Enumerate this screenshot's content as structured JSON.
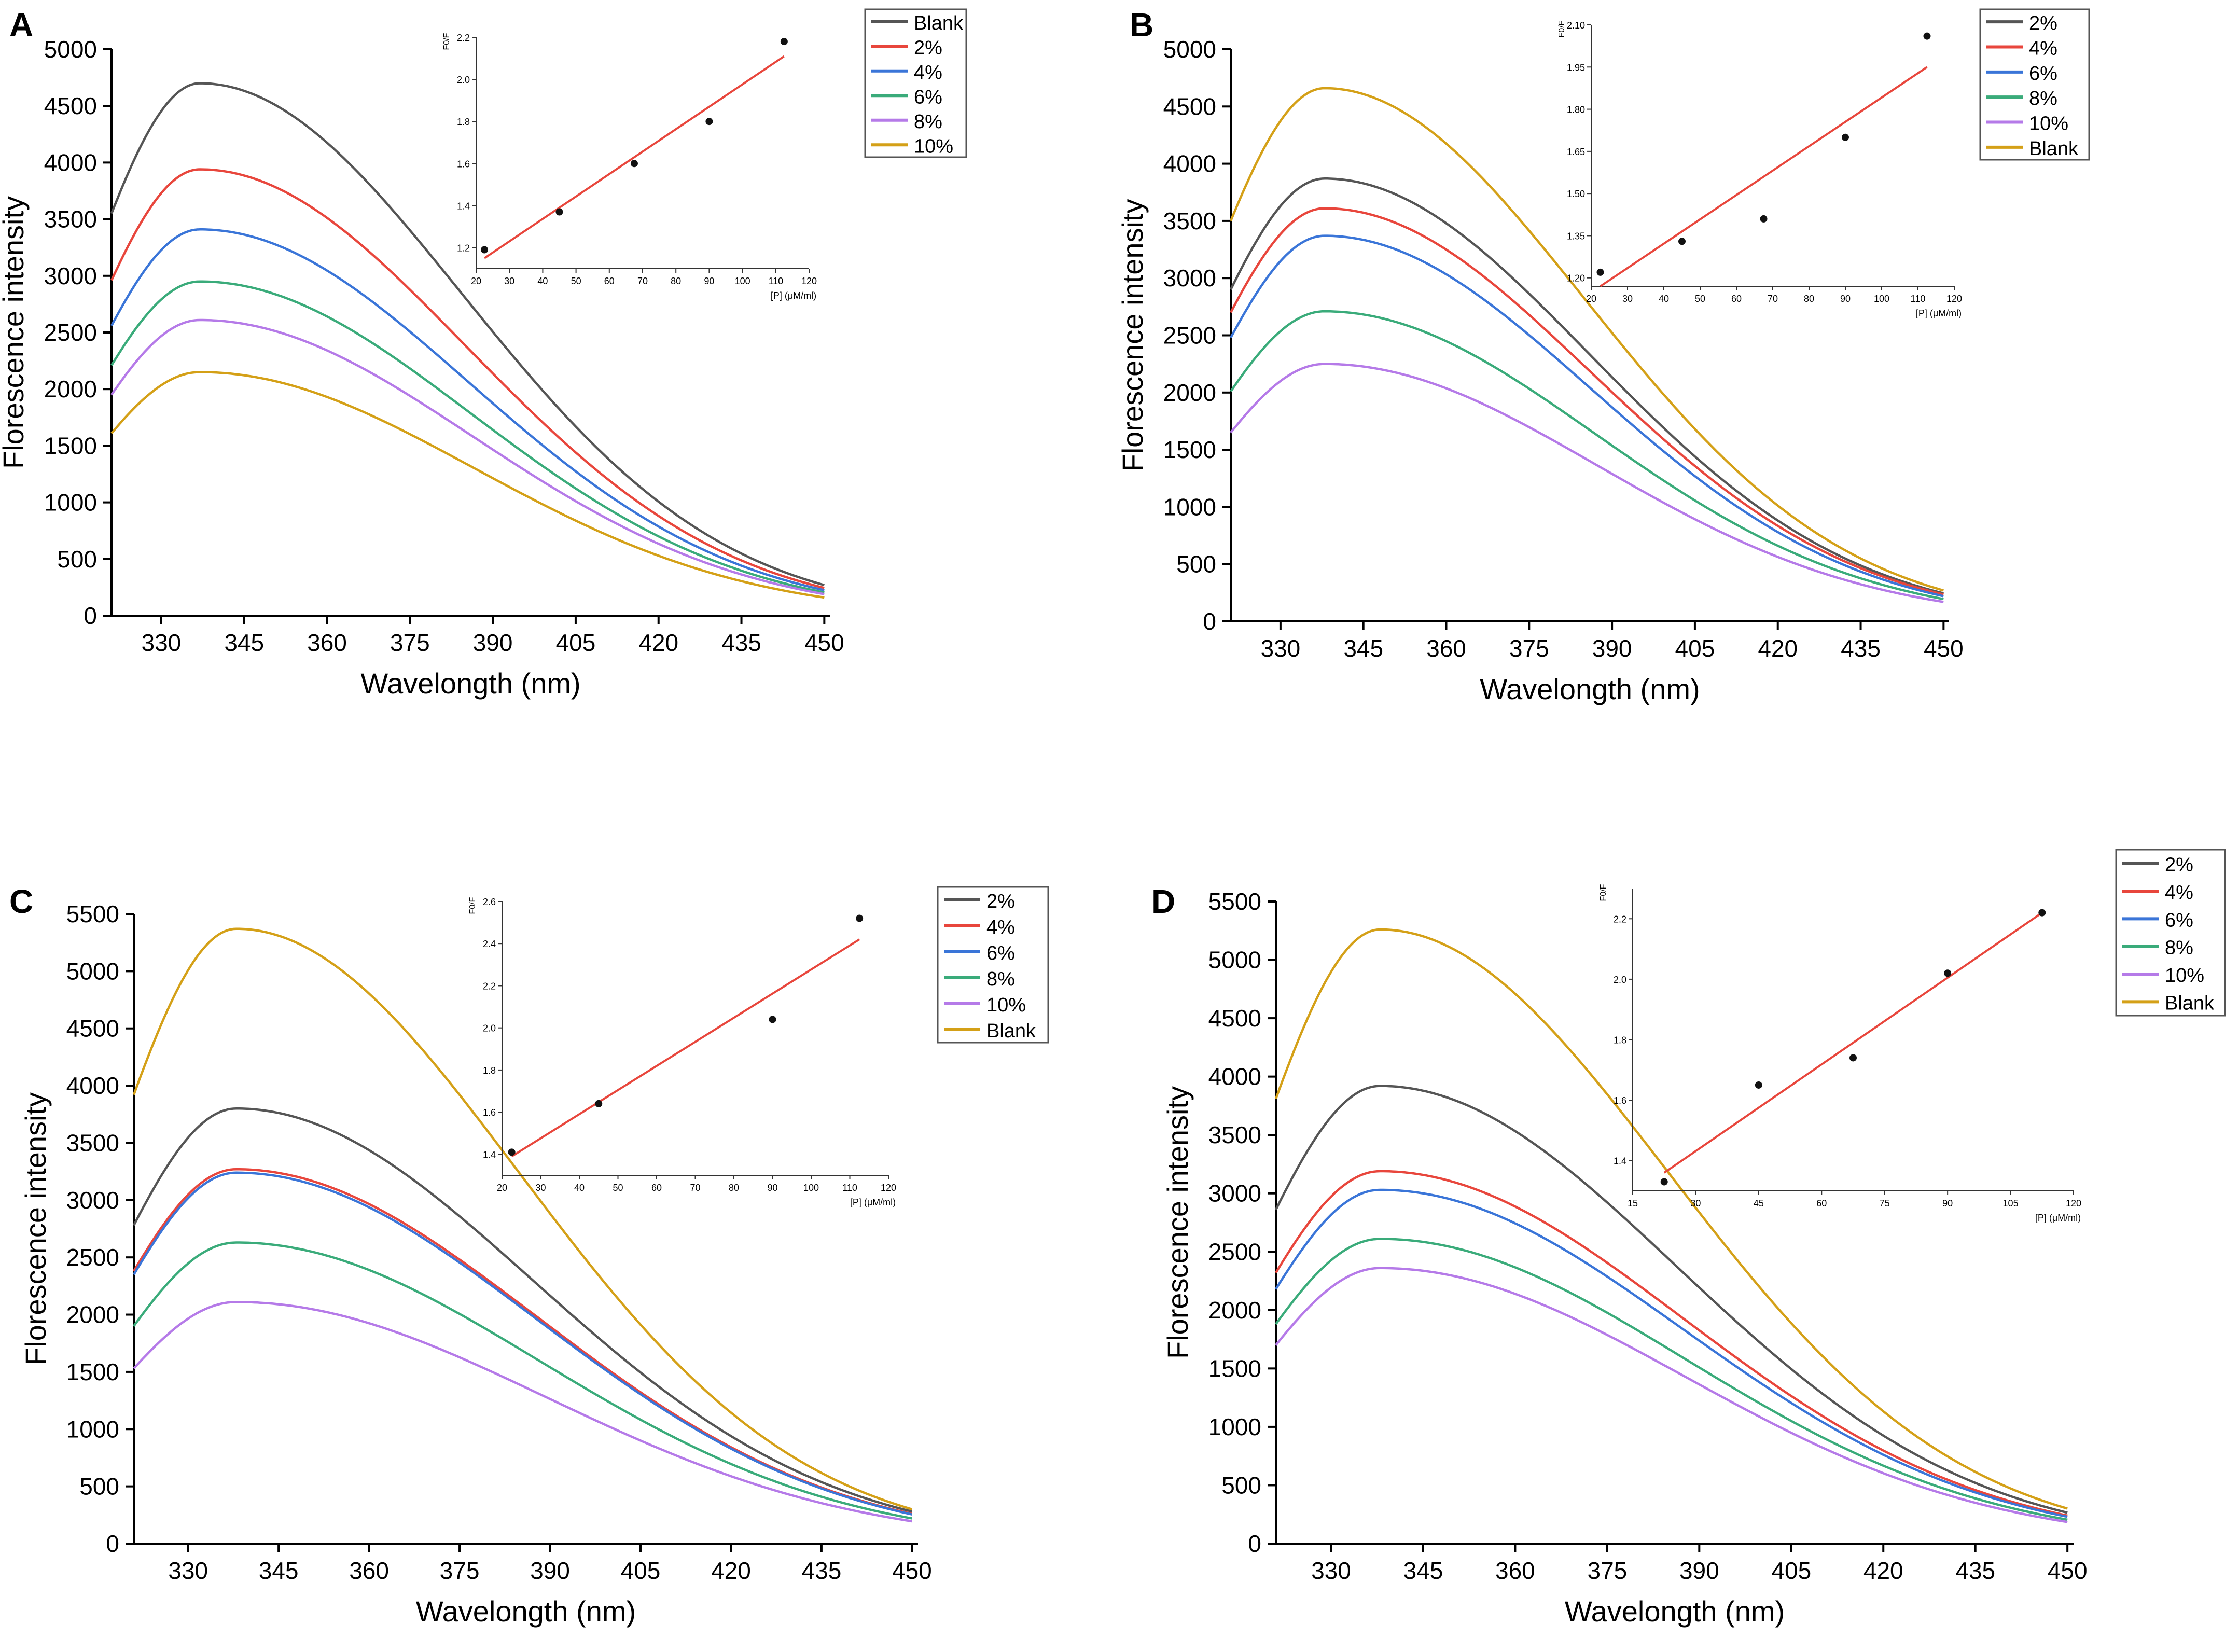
{
  "figure": {
    "panels": [
      {
        "letter": "A",
        "main": {
          "type": "line",
          "xlabel": "Wavelongth (nm)",
          "ylabel": "Florescence intensity",
          "xlim": [
            321,
            451
          ],
          "ylim": [
            0,
            5000
          ],
          "xticks": [
            330,
            345,
            360,
            375,
            390,
            405,
            420,
            435,
            450
          ],
          "yticks": [
            0,
            500,
            1000,
            1500,
            2000,
            2500,
            3000,
            3500,
            4000,
            4500,
            5000
          ],
          "x_start": 321,
          "x_end": 450,
          "peak_x": 337,
          "series": [
            {
              "name": "Blank",
              "color": "#555555",
              "peak": 4700,
              "start": 3550,
              "end": 270
            },
            {
              "name": "2%",
              "color": "#e8463c",
              "peak": 3940,
              "start": 2960,
              "end": 245
            },
            {
              "name": "4%",
              "color": "#3a75d8",
              "peak": 3410,
              "start": 2560,
              "end": 225
            },
            {
              "name": "6%",
              "color": "#3aab7a",
              "peak": 2950,
              "start": 2210,
              "end": 205
            },
            {
              "name": "8%",
              "color": "#b57ae8",
              "peak": 2610,
              "start": 1950,
              "end": 190
            },
            {
              "name": "10%",
              "color": "#d4a017",
              "peak": 2150,
              "start": 1610,
              "end": 160
            }
          ]
        },
        "inset": {
          "type": "scatter",
          "xlabel": "[P] (μM/ml)",
          "ylabel": "F0/F",
          "xlim": [
            20,
            120
          ],
          "ylim": [
            1.1,
            2.2
          ],
          "xticks": [
            20,
            30,
            40,
            50,
            60,
            70,
            80,
            90,
            100,
            110,
            120
          ],
          "yticks": [
            1.2,
            1.4,
            1.6,
            1.8,
            2.0,
            2.2
          ],
          "ytick_labels": [
            "1.2",
            "1.4",
            "1.6",
            "1.8",
            "2.0",
            "2.2"
          ],
          "x": [
            22.5,
            45,
            67.5,
            90,
            112.5
          ],
          "y": [
            1.19,
            1.37,
            1.6,
            1.8,
            2.18
          ],
          "fit": {
            "x": [
              22.5,
              112.5
            ],
            "y": [
              1.15,
              2.11
            ]
          }
        }
      },
      {
        "letter": "B",
        "main": {
          "type": "line",
          "xlabel": "Wavelongth (nm)",
          "ylabel": "Florescence intensity",
          "xlim": [
            321,
            451
          ],
          "ylim": [
            0,
            5000
          ],
          "xticks": [
            330,
            345,
            360,
            375,
            390,
            405,
            420,
            435,
            450
          ],
          "yticks": [
            0,
            500,
            1000,
            1500,
            2000,
            2500,
            3000,
            3500,
            4000,
            4500,
            5000
          ],
          "x_start": 321,
          "x_end": 450,
          "peak_x": 338,
          "series": [
            {
              "name": "2%",
              "color": "#555555",
              "peak": 3870,
              "start": 2900,
              "end": 245
            },
            {
              "name": "4%",
              "color": "#e8463c",
              "peak": 3610,
              "start": 2700,
              "end": 235
            },
            {
              "name": "6%",
              "color": "#3a75d8",
              "peak": 3370,
              "start": 2480,
              "end": 220
            },
            {
              "name": "8%",
              "color": "#3aab7a",
              "peak": 2710,
              "start": 2010,
              "end": 195
            },
            {
              "name": "10%",
              "color": "#b57ae8",
              "peak": 2250,
              "start": 1650,
              "end": 170
            },
            {
              "name": "Blank",
              "color": "#d4a017",
              "peak": 4660,
              "start": 3500,
              "end": 270
            }
          ]
        },
        "inset": {
          "type": "scatter",
          "xlabel": "[P] (μM/ml)",
          "ylabel": "F0/F",
          "xlim": [
            20,
            120
          ],
          "ylim": [
            1.17,
            2.1
          ],
          "xticks": [
            20,
            30,
            40,
            50,
            60,
            70,
            80,
            90,
            100,
            110,
            120
          ],
          "yticks": [
            1.2,
            1.35,
            1.5,
            1.65,
            1.8,
            1.95,
            2.1
          ],
          "ytick_labels": [
            "1.20",
            "1.35",
            "1.50",
            "1.65",
            "1.80",
            "1.95",
            "2.10"
          ],
          "x": [
            22.5,
            45,
            67.5,
            90,
            112.5
          ],
          "y": [
            1.22,
            1.33,
            1.41,
            1.7,
            2.06
          ],
          "fit": {
            "x": [
              22.5,
              112.5
            ],
            "y": [
              1.17,
              1.95
            ]
          }
        }
      },
      {
        "letter": "C",
        "main": {
          "type": "line",
          "xlabel": "Wavelongth (nm)",
          "ylabel": "Florescence intensity",
          "xlim": [
            321,
            451
          ],
          "ylim": [
            0,
            5500
          ],
          "xticks": [
            330,
            345,
            360,
            375,
            390,
            405,
            420,
            435,
            450
          ],
          "yticks": [
            0,
            500,
            1000,
            1500,
            2000,
            2500,
            3000,
            3500,
            4000,
            4500,
            5000,
            5500
          ],
          "x_start": 321,
          "x_end": 450,
          "peak_x": 338,
          "series": [
            {
              "name": "2%",
              "color": "#555555",
              "peak": 3800,
              "start": 2780,
              "end": 280
            },
            {
              "name": "4%",
              "color": "#e8463c",
              "peak": 3270,
              "start": 2380,
              "end": 260
            },
            {
              "name": "6%",
              "color": "#3a75d8",
              "peak": 3240,
              "start": 2350,
              "end": 255
            },
            {
              "name": "8%",
              "color": "#3aab7a",
              "peak": 2630,
              "start": 1900,
              "end": 220
            },
            {
              "name": "10%",
              "color": "#b57ae8",
              "peak": 2110,
              "start": 1530,
              "end": 195
            },
            {
              "name": "Blank",
              "color": "#d4a017",
              "peak": 5370,
              "start": 3920,
              "end": 300
            }
          ]
        },
        "inset": {
          "type": "scatter",
          "xlabel": "[P] (μM/ml)",
          "ylabel": "F0/F",
          "xlim": [
            20,
            120
          ],
          "ylim": [
            1.3,
            2.6
          ],
          "xticks": [
            20,
            30,
            40,
            50,
            60,
            70,
            80,
            90,
            100,
            110,
            120
          ],
          "yticks": [
            1.4,
            1.6,
            1.8,
            2.0,
            2.2,
            2.4,
            2.6
          ],
          "ytick_labels": [
            "1.4",
            "1.6",
            "1.8",
            "2.0",
            "2.2",
            "2.4",
            "2.6"
          ],
          "x": [
            22.5,
            45,
            90,
            112.5
          ],
          "y": [
            1.41,
            1.64,
            2.04,
            2.52
          ],
          "fit": {
            "x": [
              22.5,
              112.5
            ],
            "y": [
              1.39,
              2.42
            ]
          }
        }
      },
      {
        "letter": "D",
        "main": {
          "type": "line",
          "xlabel": "Wavelongth (nm)",
          "ylabel": "Florescence intensity",
          "xlim": [
            321,
            451
          ],
          "ylim": [
            0,
            5500
          ],
          "xticks": [
            330,
            345,
            360,
            375,
            390,
            405,
            420,
            435,
            450
          ],
          "yticks": [
            0,
            500,
            1000,
            1500,
            2000,
            2500,
            3000,
            3500,
            4000,
            4500,
            5000,
            5500
          ],
          "x_start": 321,
          "x_end": 450,
          "peak_x": 338,
          "series": [
            {
              "name": "2%",
              "color": "#555555",
              "peak": 3920,
              "start": 2860,
              "end": 265
            },
            {
              "name": "4%",
              "color": "#e8463c",
              "peak": 3190,
              "start": 2320,
              "end": 240
            },
            {
              "name": "6%",
              "color": "#3a75d8",
              "peak": 3030,
              "start": 2180,
              "end": 230
            },
            {
              "name": "8%",
              "color": "#3aab7a",
              "peak": 2610,
              "start": 1880,
              "end": 205
            },
            {
              "name": "10%",
              "color": "#b57ae8",
              "peak": 2360,
              "start": 1700,
              "end": 185
            },
            {
              "name": "Blank",
              "color": "#d4a017",
              "peak": 5260,
              "start": 3810,
              "end": 300
            }
          ]
        },
        "inset": {
          "type": "scatter",
          "xlabel": "[P] (μM/ml)",
          "ylabel": "F0/F",
          "xlim": [
            15,
            120
          ],
          "ylim": [
            1.3,
            2.3
          ],
          "xticks": [
            15,
            30,
            45,
            60,
            75,
            90,
            105,
            120
          ],
          "yticks": [
            1.4,
            1.6,
            1.8,
            2.0,
            2.2
          ],
          "ytick_labels": [
            "1.4",
            "1.6",
            "1.8",
            "2.0",
            "2.2"
          ],
          "x": [
            22.5,
            45,
            67.5,
            90,
            112.5
          ],
          "y": [
            1.33,
            1.65,
            1.74,
            2.02,
            2.22
          ],
          "fit": {
            "x": [
              22.5,
              112.5
            ],
            "y": [
              1.36,
              2.22
            ]
          }
        }
      }
    ]
  }
}
